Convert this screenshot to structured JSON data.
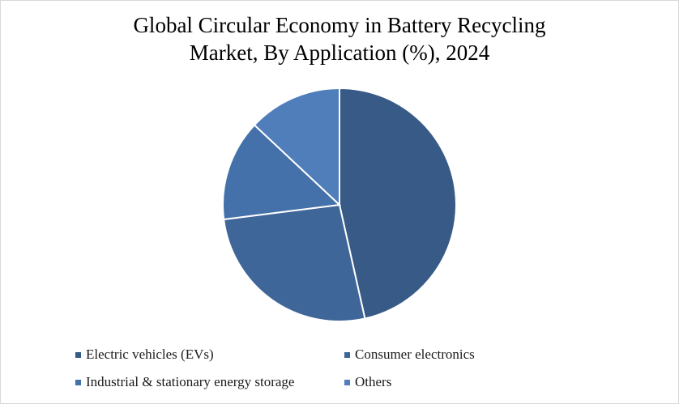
{
  "chart_data": {
    "type": "pie",
    "title": "Global Circular Economy in Battery Recycling Market, By Application (%), 2024",
    "title_lines": [
      "Global Circular Economy in Battery Recycling",
      "Market, By Application (%), 2024"
    ],
    "categories": [
      "Electric vehicles (EVs)",
      "Consumer electronics",
      "Industrial & stationary energy storage",
      "Others"
    ],
    "values": [
      46.5,
      26.5,
      14.0,
      13.0
    ],
    "colors": [
      "#375a86",
      "#3f6698",
      "#4571aa",
      "#4f7ebb"
    ],
    "start_angle_deg": 0,
    "direction": "clockwise",
    "legend_position": "bottom"
  }
}
